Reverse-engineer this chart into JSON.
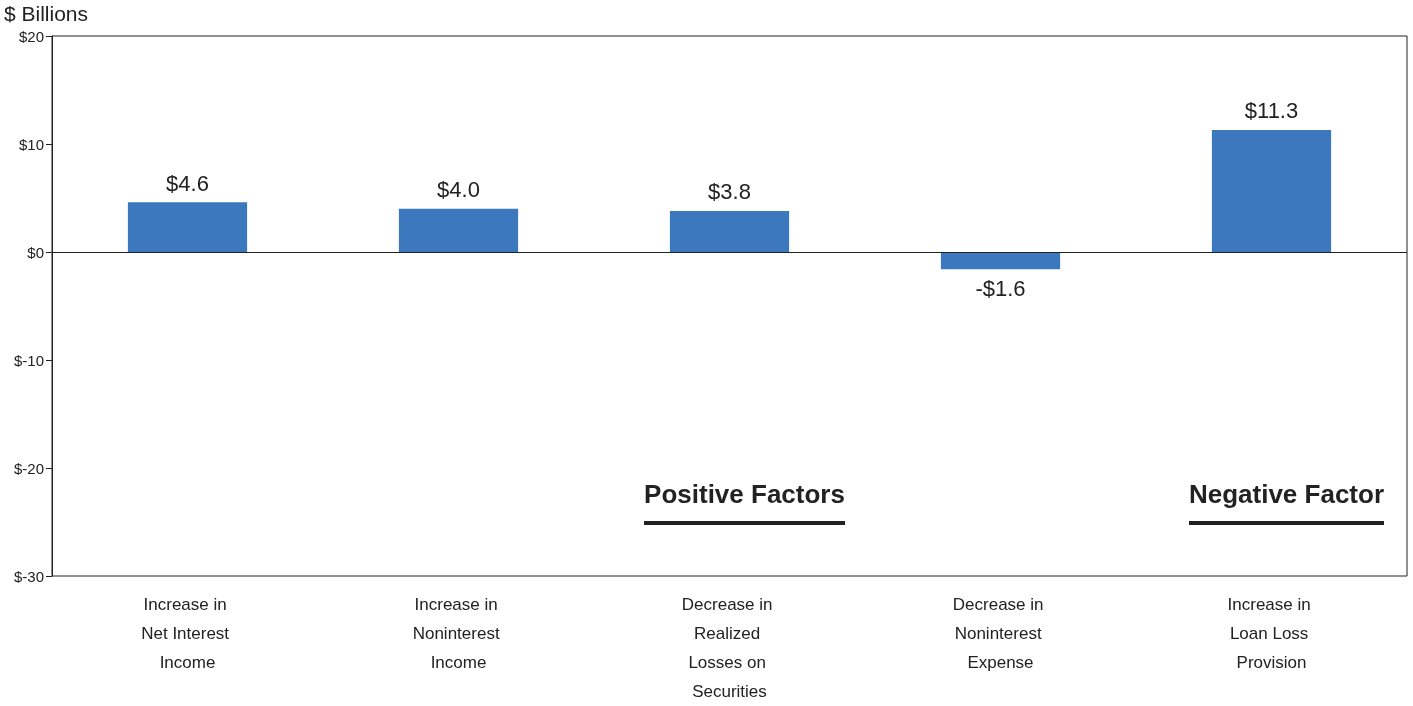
{
  "chart_data": {
    "type": "bar",
    "ylabel": "$ Billions",
    "categories": [
      "Increase in Net Interest Income",
      "Increase in Noninterest Income",
      "Decrease in Realized Losses on Securities",
      "Decrease in Noninterest Expense",
      "Increase in Loan Loss Provision"
    ],
    "values": [
      4.6,
      4.0,
      3.8,
      -1.6,
      11.3
    ],
    "value_labels": [
      "$4.6",
      "$4.0",
      "$3.8",
      "-$1.6",
      "$11.3"
    ],
    "color": "#3b78bd",
    "ylim": [
      -30,
      20
    ],
    "yticks": [
      {
        "value": -30,
        "label": "$-30"
      },
      {
        "value": -20,
        "label": "$-20"
      },
      {
        "value": -10,
        "label": "$-10"
      },
      {
        "value": 0,
        "label": "$0"
      },
      {
        "value": 10,
        "label": "$10"
      },
      {
        "value": 20,
        "label": "$20"
      }
    ],
    "ref_lines": [
      {
        "axis": "y",
        "value": 0,
        "color": "#222222"
      }
    ],
    "annotations": [
      "Positive Factors",
      "Negative Factor"
    ],
    "grid": false
  }
}
